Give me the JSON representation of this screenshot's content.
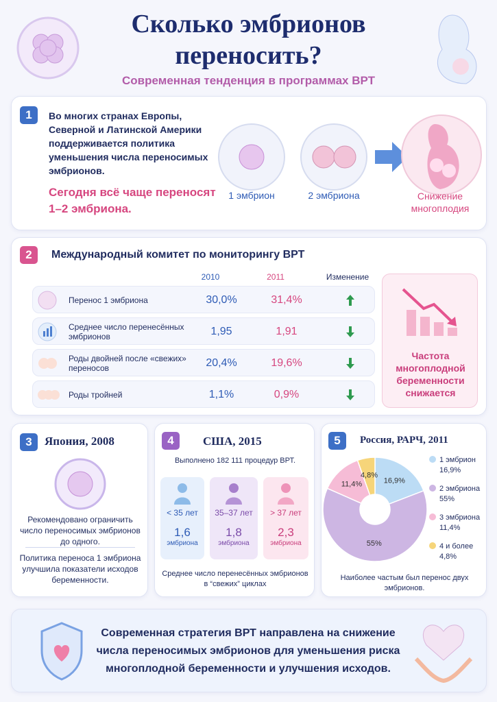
{
  "header": {
    "title_line1": "Сколько эмбрионов",
    "title_line2": "переносить?",
    "subtitle": "Современная тенденция в программах ВРТ"
  },
  "section1": {
    "number": "1",
    "text": "Во многих странах Европы, Северной и Латинской Америки поддерживается политика уменьшения числа переносимых эмбрионов.",
    "highlight": "Сегодня всё чаще переносят 1–2 эмбриона.",
    "labels": [
      "1 эмбрион",
      "2 эмбриона",
      "Снижение многоплодия"
    ]
  },
  "section2": {
    "number": "2",
    "title": "Международный комитет по мониторингу ВРТ",
    "columns": [
      "2010",
      "2011",
      "Изменение"
    ],
    "rows": [
      {
        "label": "Перенос 1 эмбриона",
        "v2010": "30,0%",
        "v2011": "31,4%"
      },
      {
        "label": "Среднее число перенесённых эмбрионов",
        "v2010": "1,95",
        "v2011": "1,91"
      },
      {
        "label": "Роды двойней после «свежих» переносов",
        "v2010": "20,4%",
        "v2011": "19,6%"
      },
      {
        "label": "Роды тройней",
        "v2010": "1,1%",
        "v2011": "0,9%"
      }
    ],
    "side_note": "Частота многоплодной беременности снижается"
  },
  "section3": {
    "number": "3",
    "title": "Япония, 2008",
    "text1": "Рекомендовано ограничить число переносимых эмбрионов до одного.",
    "text2": "Политика переноса 1 эмбриона улучшила показатели исходов беременности."
  },
  "section4": {
    "number": "4",
    "title": "США, 2015",
    "intro": "Выполнено 182 111 процедур ВРТ.",
    "groups": [
      {
        "age": "< 35 лет",
        "value": "1,6",
        "unit": "эмбриона"
      },
      {
        "age": "35–37 лет",
        "value": "1,8",
        "unit": "эмбриона"
      },
      {
        "age": "> 37 лет",
        "value": "2,3",
        "unit": "эмбриона"
      }
    ],
    "footer": "Среднее число перенесённых эмбрионов в “свежих” циклах"
  },
  "chart_data": {
    "type": "pie",
    "number": "5",
    "title": "Россия, РАРЧ, 2011",
    "categories": [
      "1 эмбрион",
      "2 эмбриона",
      "3 эмбриона",
      "4 и более"
    ],
    "values": [
      16.9,
      55,
      11.4,
      4.8
    ],
    "value_labels": [
      "16,9%",
      "55%",
      "11,4%",
      "4,8%"
    ],
    "colors": [
      "#bcdcf5",
      "#cdb6e3",
      "#f6bcd6",
      "#f6d57a"
    ],
    "footer": "Наиболее частым был перенос двух эмбрионов."
  },
  "footer": {
    "text": "Современная стратегия ВРТ направлена на снижение числа переносимых эмбрионов для уменьшения риска многоплодной беременности и улучшения исходов."
  }
}
